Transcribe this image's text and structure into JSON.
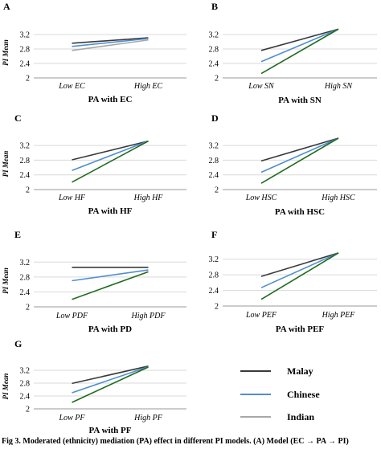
{
  "legend": [
    {
      "name": "Malay",
      "color": "#3a3a3a"
    },
    {
      "name": "Chinese",
      "color": "#4f8fd0"
    },
    {
      "name": "Indian",
      "color": "#a8a8a8"
    }
  ],
  "series_colors": {
    "Malay": "#3a3a3a",
    "Chinese": "#4f8fd0",
    "Indian": "#a8a8a8",
    "Indian_steep": "#1f6b1f"
  },
  "caption": "Fig 3. Moderated (ethnicity) mediation (PA) effect in different PI models. (A) Model (EC → PA → PI)",
  "chart_data": [
    {
      "type": "line",
      "panel": "A",
      "ylabel": "PI Mean",
      "xlabel": "PA with EC",
      "categories": [
        "Low EC",
        "High EC"
      ],
      "yticks": [
        "2",
        "2.4",
        "2.8",
        "3.2"
      ],
      "ylim": [
        2,
        3.4
      ],
      "series": [
        {
          "name": "Malay",
          "values": [
            2.96,
            3.11
          ]
        },
        {
          "name": "Chinese",
          "values": [
            2.87,
            3.09
          ]
        },
        {
          "name": "Indian",
          "values": [
            2.76,
            3.05
          ]
        }
      ]
    },
    {
      "type": "line",
      "panel": "B",
      "ylabel": "",
      "xlabel": "PA with SN",
      "categories": [
        "Low SN",
        "High SN"
      ],
      "yticks": [
        "2",
        "2.4",
        "2.8",
        "3.2"
      ],
      "ylim": [
        2,
        3.4
      ],
      "series": [
        {
          "name": "Malay",
          "values": [
            2.76,
            3.35
          ]
        },
        {
          "name": "Chinese",
          "values": [
            2.45,
            3.35
          ]
        },
        {
          "name": "Indian",
          "values": [
            2.12,
            3.35
          ]
        }
      ]
    },
    {
      "type": "line",
      "panel": "C",
      "ylabel": "PI Mean",
      "xlabel": "PA with HF",
      "categories": [
        "Low HF",
        "High HF"
      ],
      "yticks": [
        "2",
        "2.4",
        "2.8",
        "3.2"
      ],
      "ylim": [
        2,
        3.4
      ],
      "series": [
        {
          "name": "Malay",
          "values": [
            2.81,
            3.32
          ]
        },
        {
          "name": "Chinese",
          "values": [
            2.52,
            3.32
          ]
        },
        {
          "name": "Indian",
          "values": [
            2.2,
            3.32
          ]
        }
      ]
    },
    {
      "type": "line",
      "panel": "D",
      "ylabel": "",
      "xlabel": "PA with HSC",
      "categories": [
        "Low HSC",
        "High HSC"
      ],
      "yticks": [
        "2",
        "2.4",
        "2.8",
        "3.2"
      ],
      "ylim": [
        2,
        3.4
      ],
      "series": [
        {
          "name": "Malay",
          "values": [
            2.78,
            3.4
          ]
        },
        {
          "name": "Chinese",
          "values": [
            2.47,
            3.4
          ]
        },
        {
          "name": "Indian",
          "values": [
            2.17,
            3.4
          ]
        }
      ]
    },
    {
      "type": "line",
      "panel": "E",
      "ylabel": "PI Mean",
      "xlabel": "PA with PD",
      "categories": [
        "Low PDF",
        "High PDF"
      ],
      "yticks": [
        "2",
        "2.4",
        "2.8",
        "3.2"
      ],
      "ylim": [
        2,
        3.4
      ],
      "series": [
        {
          "name": "Malay",
          "values": [
            3.06,
            3.06
          ]
        },
        {
          "name": "Chinese",
          "values": [
            2.7,
            2.99
          ]
        },
        {
          "name": "Indian",
          "values": [
            2.2,
            2.94
          ]
        }
      ]
    },
    {
      "type": "line",
      "panel": "F",
      "ylabel": "",
      "xlabel": "PA with PEF",
      "categories": [
        "Low PEF",
        "High PEF"
      ],
      "yticks": [
        "2",
        "2.4",
        "2.8",
        "3.2"
      ],
      "ylim": [
        2,
        3.4
      ],
      "series": [
        {
          "name": "Malay",
          "values": [
            2.76,
            3.36
          ]
        },
        {
          "name": "Chinese",
          "values": [
            2.47,
            3.36
          ]
        },
        {
          "name": "Indian",
          "values": [
            2.17,
            3.36
          ]
        }
      ]
    },
    {
      "type": "line",
      "panel": "G",
      "ylabel": "PI Mean",
      "xlabel": "PA with PF",
      "categories": [
        "Low PF",
        "High PF"
      ],
      "yticks": [
        "2",
        "2.4",
        "2.8",
        "3.2"
      ],
      "ylim": [
        2,
        3.4
      ],
      "series": [
        {
          "name": "Malay",
          "values": [
            2.79,
            3.33
          ]
        },
        {
          "name": "Chinese",
          "values": [
            2.5,
            3.31
          ]
        },
        {
          "name": "Indian",
          "values": [
            2.2,
            3.3
          ]
        }
      ]
    }
  ]
}
